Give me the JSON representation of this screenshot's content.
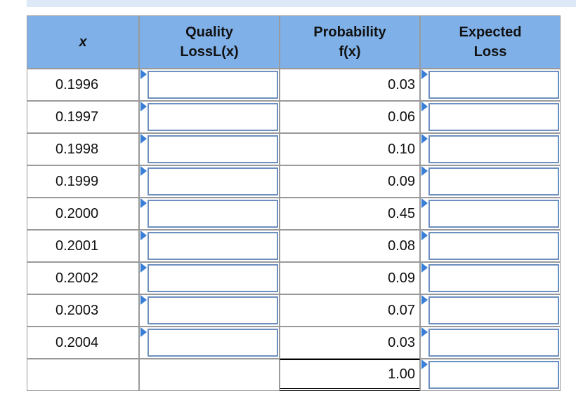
{
  "table": {
    "header": [
      [
        "x"
      ],
      [
        "Quality",
        "LossL(x)"
      ],
      [
        "Probability",
        "f(x)"
      ],
      [
        "Expected",
        "Loss"
      ]
    ],
    "rows": [
      [
        "0.1996",
        "0.03"
      ],
      [
        "0.1997",
        "0.06"
      ],
      [
        "0.1998",
        "0.10"
      ],
      [
        "0.1999",
        "0.09"
      ],
      [
        "0.2000",
        "0.45"
      ],
      [
        "0.2001",
        "0.08"
      ],
      [
        "0.2002",
        "0.09"
      ],
      [
        "0.2003",
        "0.07"
      ],
      [
        "0.2004",
        "0.03"
      ]
    ],
    "total": "1.00"
  }
}
